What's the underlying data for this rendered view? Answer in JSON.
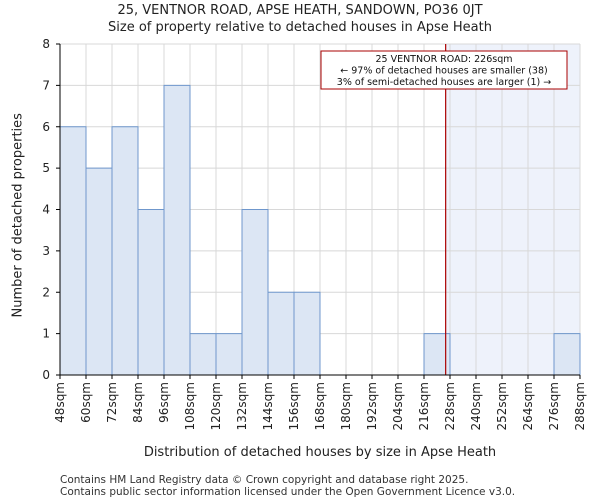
{
  "chart_data": {
    "type": "bar",
    "title": "25, VENTNOR ROAD, APSE HEATH, SANDOWN, PO36 0JT",
    "subtitle": "Size of property relative to detached houses in Apse Heath",
    "xlabel": "Distribution of detached houses by size in Apse Heath",
    "ylabel": "Number of detached properties",
    "bin_edges": [
      48,
      60,
      72,
      84,
      96,
      108,
      120,
      132,
      144,
      156,
      168,
      180,
      192,
      204,
      216,
      228,
      240,
      252,
      264,
      276,
      288
    ],
    "tick_labels": [
      "48sqm",
      "60sqm",
      "72sqm",
      "84sqm",
      "96sqm",
      "108sqm",
      "120sqm",
      "132sqm",
      "144sqm",
      "156sqm",
      "168sqm",
      "180sqm",
      "192sqm",
      "204sqm",
      "216sqm",
      "228sqm",
      "240sqm",
      "252sqm",
      "264sqm",
      "276sqm",
      "288sqm"
    ],
    "values": [
      6,
      5,
      6,
      4,
      7,
      1,
      1,
      4,
      2,
      2,
      0,
      0,
      0,
      0,
      1,
      0,
      0,
      0,
      0,
      1
    ],
    "ylim": [
      0,
      8
    ],
    "yticks": [
      0,
      1,
      2,
      3,
      4,
      5,
      6,
      7,
      8
    ],
    "grid": true,
    "marker": {
      "value": 226,
      "line1": "25 VENTNOR ROAD: 226sqm",
      "line2": "← 97% of detached houses are smaller (38)",
      "line3": "3% of semi-detached houses are larger (1) →"
    },
    "colors": {
      "bar_fill": "#dce6f4",
      "bar_stroke": "#6f97cc",
      "highlight_region": "#eef2fb",
      "marker_line": "#aa0000",
      "grid": "#d8d8d8"
    }
  },
  "footer": {
    "line1": "Contains HM Land Registry data © Crown copyright and database right 2025.",
    "line2": "Contains public sector information licensed under the Open Government Licence v3.0."
  }
}
